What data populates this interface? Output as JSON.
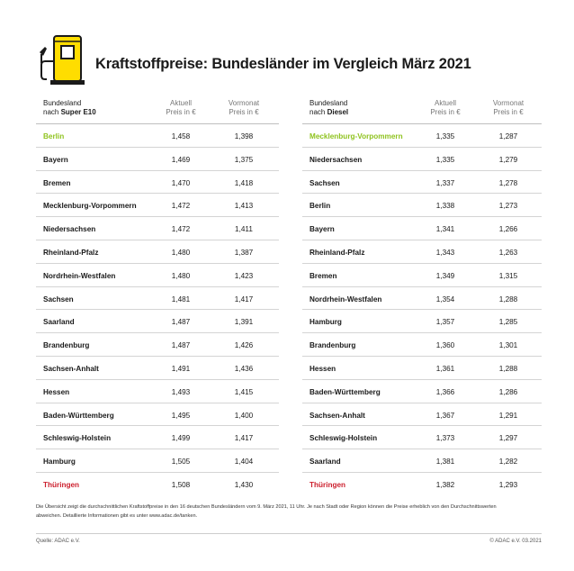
{
  "header": {
    "title": "Kraftstoffpreise: Bundesländer im Vergleich März 2021",
    "icon": "fuel-pump-icon",
    "accent_color": "#ffdd00"
  },
  "colors": {
    "best": "#8fc31f",
    "worst": "#cc1f2d"
  },
  "e10": {
    "head_line1": "Bundesland",
    "head_prefix": "nach ",
    "head_fuel": "Super E10",
    "current_line1": "Aktuell",
    "current_line2": "Preis in €",
    "prev_line1": "Vormonat",
    "prev_line2": "Preis in €",
    "rows": [
      {
        "state": "Berlin",
        "current": "1,458",
        "previous": "1,398"
      },
      {
        "state": "Bayern",
        "current": "1,469",
        "previous": "1,375"
      },
      {
        "state": "Bremen",
        "current": "1,470",
        "previous": "1,418"
      },
      {
        "state": "Mecklenburg-Vorpommern",
        "current": "1,472",
        "previous": "1,413"
      },
      {
        "state": "Niedersachsen",
        "current": "1,472",
        "previous": "1,411"
      },
      {
        "state": "Rheinland-Pfalz",
        "current": "1,480",
        "previous": "1,387"
      },
      {
        "state": "Nordrhein-Westfalen",
        "current": "1,480",
        "previous": "1,423"
      },
      {
        "state": "Sachsen",
        "current": "1,481",
        "previous": "1,417"
      },
      {
        "state": "Saarland",
        "current": "1,487",
        "previous": "1,391"
      },
      {
        "state": "Brandenburg",
        "current": "1,487",
        "previous": "1,426"
      },
      {
        "state": "Sachsen-Anhalt",
        "current": "1,491",
        "previous": "1,436"
      },
      {
        "state": "Hessen",
        "current": "1,493",
        "previous": "1,415"
      },
      {
        "state": "Baden-Württemberg",
        "current": "1,495",
        "previous": "1,400"
      },
      {
        "state": "Schleswig-Holstein",
        "current": "1,499",
        "previous": "1,417"
      },
      {
        "state": "Hamburg",
        "current": "1,505",
        "previous": "1,404"
      },
      {
        "state": "Thüringen",
        "current": "1,508",
        "previous": "1,430"
      }
    ]
  },
  "diesel": {
    "head_line1": "Bundesland",
    "head_prefix": "nach ",
    "head_fuel": "Diesel",
    "current_line1": "Aktuell",
    "current_line2": "Preis in €",
    "prev_line1": "Vormonat",
    "prev_line2": "Preis in €",
    "rows": [
      {
        "state": "Mecklenburg-Vorpommern",
        "current": "1,335",
        "previous": "1,287"
      },
      {
        "state": "Niedersachsen",
        "current": "1,335",
        "previous": "1,279"
      },
      {
        "state": "Sachsen",
        "current": "1,337",
        "previous": "1,278"
      },
      {
        "state": "Berlin",
        "current": "1,338",
        "previous": "1,273"
      },
      {
        "state": "Bayern",
        "current": "1,341",
        "previous": "1,266"
      },
      {
        "state": "Rheinland-Pfalz",
        "current": "1,343",
        "previous": "1,263"
      },
      {
        "state": "Bremen",
        "current": "1,349",
        "previous": "1,315"
      },
      {
        "state": "Nordrhein-Westfalen",
        "current": "1,354",
        "previous": "1,288"
      },
      {
        "state": "Hamburg",
        "current": "1,357",
        "previous": "1,285"
      },
      {
        "state": "Brandenburg",
        "current": "1,360",
        "previous": "1,301"
      },
      {
        "state": "Hessen",
        "current": "1,361",
        "previous": "1,288"
      },
      {
        "state": "Baden-Württemberg",
        "current": "1,366",
        "previous": "1,286"
      },
      {
        "state": "Sachsen-Anhalt",
        "current": "1,367",
        "previous": "1,291"
      },
      {
        "state": "Schleswig-Holstein",
        "current": "1,373",
        "previous": "1,297"
      },
      {
        "state": "Saarland",
        "current": "1,381",
        "previous": "1,282"
      },
      {
        "state": "Thüringen",
        "current": "1,382",
        "previous": "1,293"
      }
    ]
  },
  "footer": {
    "note": "Die Übersicht zeigt die durchschnittlichen Kraftstoffpreise in den 16 deutschen Bundesländern vom 9. März 2021, 11 Uhr. Je nach Stadt oder Region können die Preise erheblich von den Durchschnittswerten abweichen. Detaillierte Informationen gibt es unter www.adac.de/tanken.",
    "source": "Quelle: ADAC e.V.",
    "copyright": "© ADAC e.V. 03.2021"
  }
}
